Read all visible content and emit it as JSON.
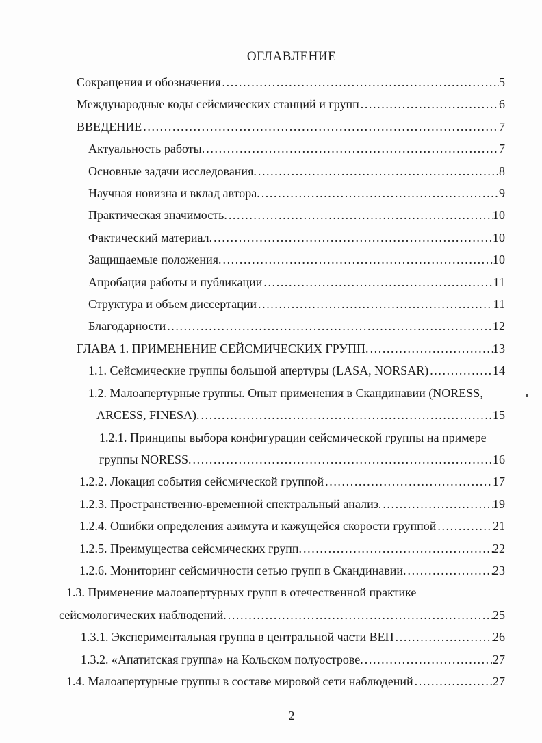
{
  "page": {
    "title": "ОГЛАВЛЕНИЕ",
    "page_number": "2"
  },
  "colors": {
    "text": "#1a1a1a",
    "background": "#fdfdfd"
  },
  "toc": {
    "rows": [
      {
        "text": "Сокращения и обозначения",
        "page": "5",
        "ind": 2
      },
      {
        "text": "Международные коды сейсмических станций и групп",
        "page": "6",
        "ind": 2
      },
      {
        "text": "ВВЕДЕНИЕ",
        "page": "7",
        "ind": 2
      },
      {
        "text": "Актуальность работы.",
        "page": "7",
        "ind": 5
      },
      {
        "text": "Основные задачи исследования.",
        "page": "8",
        "ind": 5
      },
      {
        "text": "Научная новизна и вклад автора.",
        "page": "9",
        "ind": 5
      },
      {
        "text": "Практическая значимость.",
        "page": "10",
        "ind": 5
      },
      {
        "text": "Фактический материал.",
        "page": "10",
        "ind": 5
      },
      {
        "text": "Защищаемые положения.",
        "page": "10",
        "ind": 5
      },
      {
        "text": "Апробация работы и публикации",
        "page": "11",
        "ind": 5
      },
      {
        "text": "Структура и объем диссертации",
        "page": "11",
        "ind": 5
      },
      {
        "text": "Благодарности",
        "page": "12",
        "ind": 5
      },
      {
        "text": "ГЛАВА 1. ПРИМЕНЕНИЕ СЕЙСМИЧЕСКИХ ГРУПП.",
        "page": "13",
        "ind": 2
      },
      {
        "text": "1.1. Сейсмические группы большой апертуры (LASA, NORSAR)",
        "page": "14",
        "ind": 5
      },
      {
        "text": "1.2. Малоапертурные группы. Опыт применения в Скандинавии (NORESS,",
        "page": "",
        "ind": 5
      },
      {
        "text": "ARCESS, FINESA).",
        "page": "15",
        "ind": 6
      },
      {
        "text": "1.2.1. Принципы выбора конфигурации сейсмической группы на примере",
        "page": "",
        "ind": 7
      },
      {
        "text": "группы NORESS.",
        "page": "16",
        "ind": 7
      },
      {
        "text": "1.2.2. Локация события сейсмической группой",
        "page": "17",
        "ind": 3
      },
      {
        "text": "1.2.3. Пространственно-временной спектральный анализ.",
        "page": "19",
        "ind": 3
      },
      {
        "text": "1.2.4. Ошибки определения азимута и кажущейся скорости группой",
        "page": "21",
        "ind": 3
      },
      {
        "text": "1.2.5. Преимущества сейсмических групп.",
        "page": "22",
        "ind": 3
      },
      {
        "text": "1.2.6. Мониторинг сейсмичности сетью групп в Скандинавии.",
        "page": "23",
        "ind": 3
      },
      {
        "text": "1.3. Применение малоапертурных групп в отечественной практике",
        "page": "",
        "ind": 1
      },
      {
        "text": "сейсмологических наблюдений.",
        "page": "25",
        "ind": 0
      },
      {
        "text": "1.3.1. Экспериментальная группа в центральной части ВЕП",
        "page": "26",
        "ind": 4
      },
      {
        "text": "1.3.2. «Апатитская группа» на Кольском полуострове.",
        "page": "27",
        "ind": 4
      },
      {
        "text": "1.4. Малоапертурные группы в составе мировой сети наблюдений",
        "page": "27",
        "ind": 1
      }
    ]
  }
}
